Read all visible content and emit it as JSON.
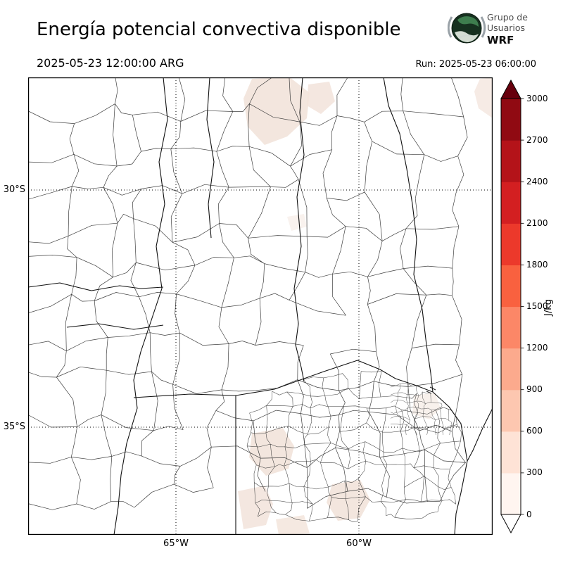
{
  "header": {
    "title": "Energía potencial convectiva disponible",
    "valid_time": "2025-05-23 12:00:00 ARG",
    "run_label": "Run: 2025-05-23 06:00:00",
    "logo": {
      "line1": "Grupo de",
      "line2": "Usuarios",
      "line3": "WRF"
    }
  },
  "map_axes": {
    "lat_ticks": [
      {
        "label": "30°S"
      },
      {
        "label": "35°S"
      }
    ],
    "lon_ticks": [
      {
        "label": "65°W"
      },
      {
        "label": "60°W"
      }
    ]
  },
  "colorbar": {
    "unit": "J/kg",
    "tick_labels": [
      "0",
      "300",
      "600",
      "900",
      "1200",
      "1500",
      "1800",
      "2100",
      "2400",
      "2700",
      "3000"
    ],
    "segment_colors": [
      "#fff5f0",
      "#fee3d6",
      "#fdc7b0",
      "#fcaa8d",
      "#fc8767",
      "#f9613f",
      "#ec392b",
      "#d31f21",
      "#b41319",
      "#900a12"
    ],
    "arrow_top_color": "#67000d",
    "arrow_bottom_color": "#ffffff"
  },
  "chart_data": {
    "type": "heatmap",
    "title": "Energía potencial convectiva disponible",
    "valid_time": "2025-05-23 12:00:00 ARG",
    "run_time": "Run: 2025-05-23 06:00:00",
    "units": "J/kg",
    "colorbar_ticks": [
      0,
      300,
      600,
      900,
      1200,
      1500,
      1800,
      2100,
      2400,
      2700,
      3000
    ],
    "colorbar_range": [
      0,
      3000
    ],
    "lat_ticks": [
      "30°S",
      "35°S"
    ],
    "lon_ticks": [
      "65°W",
      "60°W"
    ],
    "field_summary": "CAPE values over the mapped region are predominantly 0 J/kg (white), with a few faint patches in the lowest color bin (below ~300 J/kg)."
  }
}
